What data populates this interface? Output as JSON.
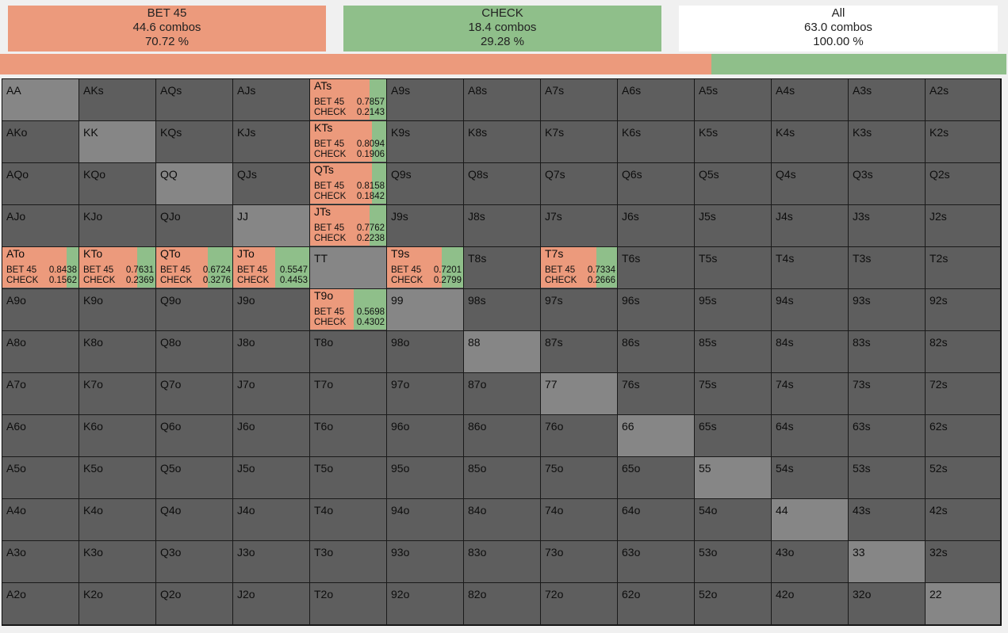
{
  "summary": [
    {
      "name": "BET 45",
      "combos": "44.6 combos",
      "pct": "70.72 %",
      "color": "#ec9a7c"
    },
    {
      "name": "CHECK",
      "combos": "18.4 combos",
      "pct": "29.28 %",
      "color": "#8fbf8a"
    },
    {
      "name": "All",
      "combos": "63.0 combos",
      "pct": "100.00 %",
      "color": "#ffffff"
    }
  ],
  "frequency_bar": {
    "bet_fraction": 0.7072,
    "check_fraction": 0.2928,
    "bet_color": "#ec9a7c",
    "check_color": "#8fbf8a"
  },
  "colors": {
    "cell": "#5e5e5e",
    "pair": "#868686",
    "bet": "#ec9a7c",
    "check": "#8fbf8a"
  },
  "ranks": [
    "A",
    "K",
    "Q",
    "J",
    "T",
    "9",
    "8",
    "7",
    "6",
    "5",
    "4",
    "3",
    "2"
  ],
  "actions": {
    "bet_label": "BET 45",
    "check_label": "CHECK"
  },
  "mixed_hands": {
    "ATs": {
      "bet": "0.7857",
      "check": "0.2143"
    },
    "KTs": {
      "bet": "0.8094",
      "check": "0.1906"
    },
    "QTs": {
      "bet": "0.8158",
      "check": "0.1842"
    },
    "JTs": {
      "bet": "0.7762",
      "check": "0.2238"
    },
    "ATo": {
      "bet": "0.8438",
      "check": "0.1562"
    },
    "KTo": {
      "bet": "0.7631",
      "check": "0.2369"
    },
    "QTo": {
      "bet": "0.6724",
      "check": "0.3276"
    },
    "JTo": {
      "bet": "0.5547",
      "check": "0.4453"
    },
    "T9s": {
      "bet": "0.7201",
      "check": "0.2799"
    },
    "T7s": {
      "bet": "0.7334",
      "check": "0.2666"
    },
    "T9o": {
      "bet": "0.5698",
      "check": "0.4302"
    }
  }
}
